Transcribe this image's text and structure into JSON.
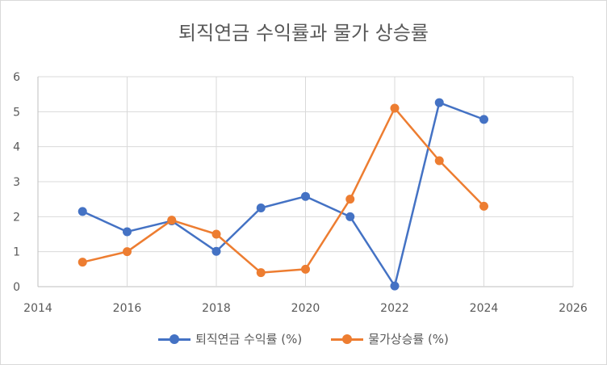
{
  "chart_data": {
    "type": "scatter",
    "title": "퇴직연금 수익률과 물가 상승률",
    "xlim": [
      2014,
      2026
    ],
    "ylim": [
      0,
      6
    ],
    "xticks": [
      "2014",
      "2016",
      "2018",
      "2020",
      "2022",
      "2024",
      "2026"
    ],
    "yticks": [
      "0",
      "1",
      "2",
      "3",
      "4",
      "5",
      "6"
    ],
    "grid": true,
    "legend_position": "bottom",
    "series": [
      {
        "name": "퇴직연금 수익률 (%)",
        "color": "#4472c4",
        "points": [
          [
            2015,
            2.15
          ],
          [
            2016,
            1.57
          ],
          [
            2017,
            1.88
          ],
          [
            2018,
            1.01
          ],
          [
            2019,
            2.25
          ],
          [
            2020,
            2.58
          ],
          [
            2021,
            2.0
          ],
          [
            2022,
            0.02
          ],
          [
            2023,
            5.26
          ],
          [
            2024,
            4.78
          ]
        ]
      },
      {
        "name": "물가상승률 (%)",
        "color": "#ed7d31",
        "points": [
          [
            2015,
            0.7
          ],
          [
            2016,
            1.0
          ],
          [
            2017,
            1.9
          ],
          [
            2018,
            1.5
          ],
          [
            2019,
            0.4
          ],
          [
            2020,
            0.5
          ],
          [
            2021,
            2.5
          ],
          [
            2022,
            5.1
          ],
          [
            2023,
            3.6
          ],
          [
            2024,
            2.3
          ]
        ]
      }
    ]
  }
}
